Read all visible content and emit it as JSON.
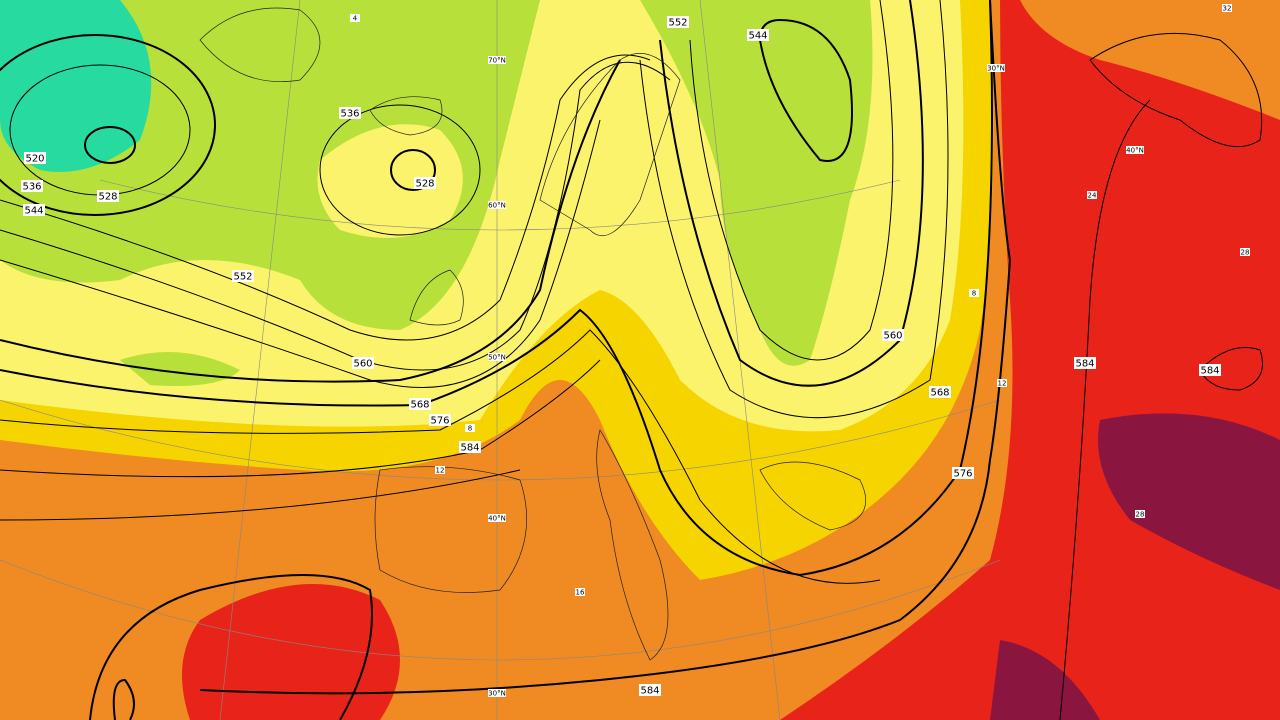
{
  "contour_labels": [
    "520",
    "528",
    "536",
    "544",
    "552",
    "560",
    "568",
    "576",
    "584",
    "536",
    "528",
    "552",
    "544",
    "560",
    "568",
    "576",
    "584",
    "584",
    "584"
  ],
  "latitude_labels": [
    "70°N",
    "60°N",
    "50°N",
    "40°N",
    "30°N",
    "30°N",
    "40°N"
  ],
  "temperature_labels": [
    "4",
    "8",
    "12",
    "16",
    "24",
    "28",
    "8",
    "12",
    "32",
    "28"
  ]
}
